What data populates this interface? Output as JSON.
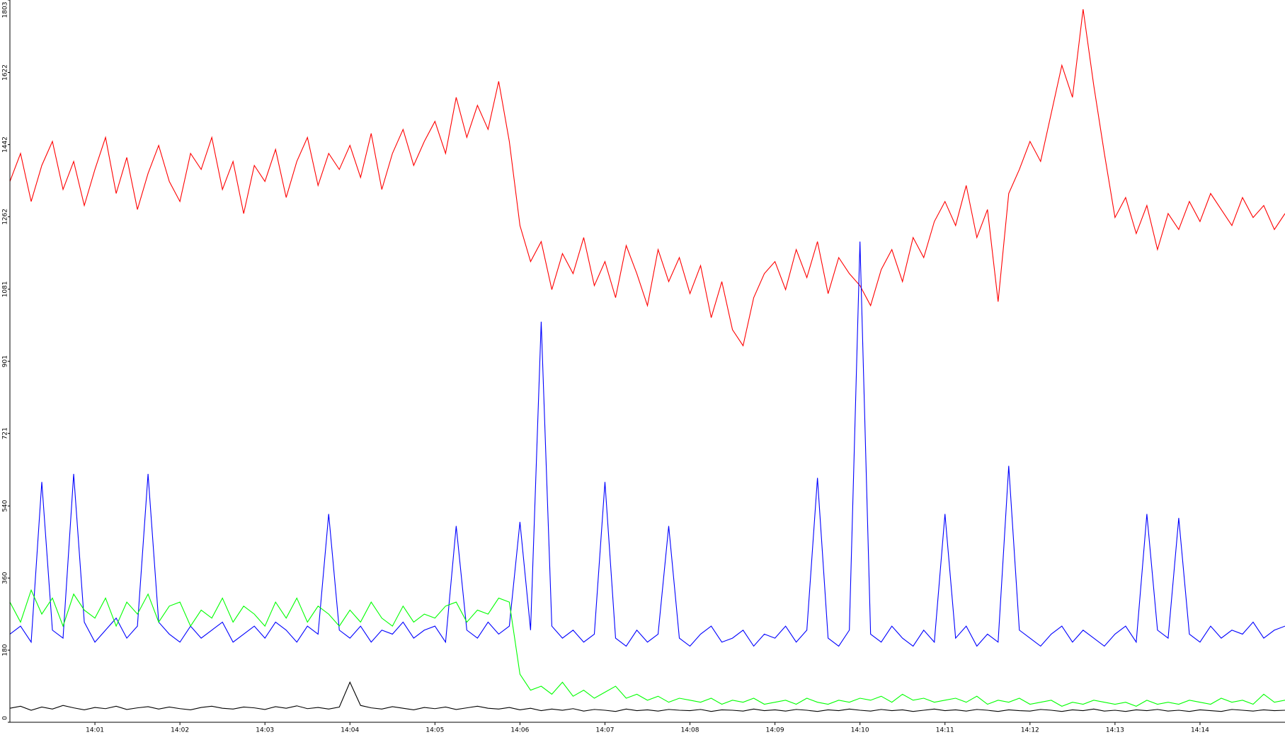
{
  "chart_data": {
    "type": "line",
    "x": [
      0,
      0.125,
      0.25,
      0.375,
      0.5,
      0.625,
      0.75,
      0.875,
      1,
      1.125,
      1.25,
      1.375,
      1.5,
      1.625,
      1.75,
      1.875,
      2,
      2.125,
      2.25,
      2.375,
      2.5,
      2.625,
      2.75,
      2.875,
      3,
      3.125,
      3.25,
      3.375,
      3.5,
      3.625,
      3.75,
      3.875,
      4,
      4.125,
      4.25,
      4.375,
      4.5,
      4.625,
      4.75,
      4.875,
      5,
      5.125,
      5.25,
      5.375,
      5.5,
      5.625,
      5.75,
      5.875,
      6,
      6.125,
      6.25,
      6.375,
      6.5,
      6.625,
      6.75,
      6.875,
      7,
      7.125,
      7.25,
      7.375,
      7.5,
      7.625,
      7.75,
      7.875,
      8,
      8.125,
      8.25,
      8.375,
      8.5,
      8.625,
      8.75,
      8.875,
      9,
      9.125,
      9.25,
      9.375,
      9.5,
      9.625,
      9.75,
      9.875,
      10,
      10.125,
      10.25,
      10.375,
      10.5,
      10.625,
      10.75,
      10.875,
      11,
      11.125,
      11.25,
      11.375,
      11.5,
      11.625,
      11.75,
      11.875,
      12,
      12.125,
      12.25,
      12.375,
      12.5,
      12.625,
      12.75,
      12.875,
      13,
      13.125,
      13.25,
      13.375,
      13.5,
      13.625,
      13.75,
      13.875,
      14,
      14.125,
      14.25,
      14.375,
      14.5,
      14.625,
      14.75,
      14.875,
      15
    ],
    "series": [
      {
        "color": "#ff0000",
        "values": [
          1350,
          1420,
          1300,
          1390,
          1450,
          1330,
          1400,
          1290,
          1380,
          1460,
          1320,
          1410,
          1280,
          1370,
          1440,
          1350,
          1300,
          1420,
          1380,
          1460,
          1330,
          1400,
          1270,
          1390,
          1350,
          1430,
          1310,
          1400,
          1460,
          1340,
          1420,
          1380,
          1440,
          1360,
          1470,
          1330,
          1420,
          1480,
          1390,
          1450,
          1500,
          1420,
          1560,
          1460,
          1540,
          1480,
          1600,
          1450,
          1240,
          1150,
          1200,
          1080,
          1170,
          1120,
          1210,
          1090,
          1150,
          1060,
          1190,
          1120,
          1040,
          1180,
          1100,
          1160,
          1070,
          1140,
          1010,
          1100,
          980,
          940,
          1060,
          1120,
          1150,
          1080,
          1180,
          1110,
          1200,
          1070,
          1160,
          1120,
          1090,
          1040,
          1130,
          1180,
          1100,
          1210,
          1160,
          1250,
          1300,
          1240,
          1340,
          1210,
          1280,
          1050,
          1320,
          1380,
          1450,
          1400,
          1520,
          1640,
          1560,
          1780,
          1590,
          1420,
          1260,
          1310,
          1220,
          1290,
          1180,
          1270,
          1230,
          1300,
          1250,
          1320,
          1280,
          1240,
          1310,
          1260,
          1290,
          1230,
          1270
        ]
      },
      {
        "color": "#0000ff",
        "values": [
          220,
          240,
          200,
          600,
          230,
          210,
          620,
          250,
          200,
          230,
          260,
          210,
          240,
          620,
          250,
          220,
          200,
          240,
          210,
          230,
          250,
          200,
          220,
          240,
          210,
          250,
          230,
          200,
          240,
          220,
          520,
          230,
          210,
          240,
          200,
          230,
          220,
          250,
          210,
          230,
          240,
          200,
          490,
          230,
          210,
          250,
          220,
          240,
          500,
          230,
          1000,
          240,
          210,
          230,
          200,
          220,
          600,
          210,
          190,
          230,
          200,
          220,
          490,
          210,
          190,
          220,
          240,
          200,
          210,
          230,
          190,
          220,
          210,
          240,
          200,
          230,
          610,
          210,
          190,
          230,
          1200,
          220,
          200,
          240,
          210,
          190,
          230,
          200,
          520,
          210,
          240,
          190,
          220,
          200,
          640,
          230,
          210,
          190,
          220,
          240,
          200,
          230,
          210,
          190,
          220,
          240,
          200,
          520,
          230,
          210,
          510,
          220,
          200,
          240,
          210,
          230,
          220,
          250,
          210,
          230,
          240
        ]
      },
      {
        "color": "#00ff00",
        "values": [
          300,
          250,
          330,
          270,
          310,
          240,
          320,
          280,
          260,
          310,
          240,
          300,
          270,
          320,
          250,
          290,
          300,
          240,
          280,
          260,
          310,
          250,
          290,
          270,
          240,
          300,
          260,
          310,
          250,
          290,
          270,
          240,
          280,
          250,
          300,
          260,
          240,
          290,
          250,
          270,
          260,
          290,
          300,
          250,
          280,
          270,
          310,
          300,
          120,
          80,
          90,
          70,
          100,
          65,
          80,
          60,
          75,
          90,
          60,
          70,
          55,
          65,
          50,
          60,
          55,
          50,
          60,
          45,
          55,
          50,
          60,
          45,
          50,
          55,
          45,
          60,
          50,
          45,
          55,
          50,
          60,
          55,
          65,
          50,
          70,
          55,
          60,
          50,
          55,
          60,
          50,
          65,
          45,
          55,
          50,
          60,
          45,
          50,
          55,
          40,
          50,
          45,
          55,
          50,
          45,
          50,
          40,
          55,
          45,
          50,
          45,
          55,
          50,
          45,
          60,
          50,
          55,
          45,
          70,
          50,
          55
        ]
      },
      {
        "color": "#000000",
        "values": [
          35,
          40,
          30,
          38,
          33,
          42,
          36,
          31,
          37,
          34,
          40,
          32,
          36,
          39,
          33,
          38,
          34,
          31,
          37,
          40,
          35,
          33,
          38,
          36,
          32,
          39,
          35,
          41,
          34,
          37,
          33,
          38,
          100,
          42,
          36,
          33,
          39,
          35,
          31,
          37,
          34,
          38,
          32,
          36,
          40,
          35,
          33,
          37,
          31,
          35,
          29,
          33,
          30,
          34,
          28,
          32,
          30,
          27,
          33,
          29,
          31,
          28,
          32,
          30,
          29,
          32,
          27,
          31,
          30,
          28,
          33,
          29,
          31,
          28,
          32,
          30,
          27,
          31,
          29,
          33,
          30,
          28,
          32,
          29,
          31,
          27,
          30,
          33,
          29,
          31,
          28,
          32,
          30,
          27,
          31,
          29,
          28,
          32,
          30,
          27,
          31,
          29,
          33,
          28,
          30,
          27,
          31,
          29,
          32,
          28,
          30,
          27,
          31,
          29,
          27,
          32,
          30,
          28,
          31,
          29,
          30
        ]
      }
    ],
    "xlim": [
      0,
      15
    ],
    "xticks": [
      {
        "value": 1,
        "label": "14:01"
      },
      {
        "value": 2,
        "label": "14:02"
      },
      {
        "value": 3,
        "label": "14:03"
      },
      {
        "value": 4,
        "label": "14:04"
      },
      {
        "value": 5,
        "label": "14:05"
      },
      {
        "value": 6,
        "label": "14:06"
      },
      {
        "value": 7,
        "label": "14:07"
      },
      {
        "value": 8,
        "label": "14:08"
      },
      {
        "value": 9,
        "label": "14:09"
      },
      {
        "value": 10,
        "label": "14:10"
      },
      {
        "value": 11,
        "label": "14:11"
      },
      {
        "value": 12,
        "label": "14:12"
      },
      {
        "value": 13,
        "label": "14:13"
      },
      {
        "value": 14,
        "label": "14:14"
      }
    ],
    "ylim": [
      0,
      1803
    ],
    "yticks": [
      0,
      180,
      360,
      540,
      721,
      901,
      1081,
      1262,
      1442,
      1622,
      1803
    ],
    "grid": false
  }
}
